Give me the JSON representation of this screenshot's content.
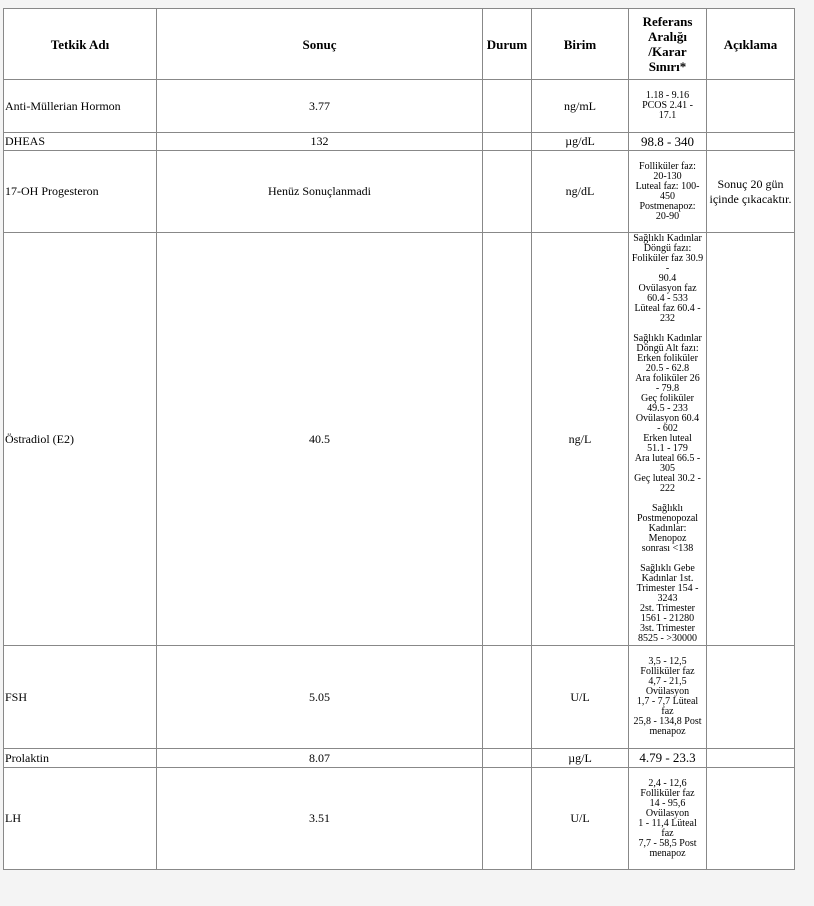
{
  "headers": {
    "test": "Tetkik Adı",
    "result": "Sonuç",
    "status": "Durum",
    "unit": "Birim",
    "reference": "Referans Aralığı /Karar Sınırı*",
    "note": "Açıklama"
  },
  "rows": [
    {
      "test": "Anti-Müllerian Hormon",
      "result": "3.77",
      "status": "",
      "unit": "ng/mL",
      "reference": "1.18 - 9.16\nPCOS 2.41 -\n17.1",
      "note": ""
    },
    {
      "test": "DHEAS",
      "result": "132",
      "status": "",
      "unit": "µg/dL",
      "reference": "98.8 - 340",
      "note": ""
    },
    {
      "test": "17-OH Progesteron",
      "result": "Henüz Sonuçlanmadi",
      "status": "",
      "unit": "ng/dL",
      "reference": "Folliküler faz:\n20-130\nLuteal faz: 100-\n450\nPostmenapoz:\n20-90",
      "note": "Sonuç 20 gün içinde çıkacaktır."
    },
    {
      "test": "Östradiol (E2)",
      "result": "40.5",
      "status": "",
      "unit": "ng/L",
      "reference": "Sağlıklı Kadınlar\nDöngü fazı:\nFoliküler faz 30.9 -\n90.4\nOvülasyon faz\n60.4 - 533\nLüteal faz 60.4 -\n232\n\nSağlıklı Kadınlar\nDöngü Alt fazı:\nErken foliküler\n20.5 - 62.8\nAra foliküler 26\n- 79.8\nGeç foliküler\n49.5 - 233\nOvülasyon 60.4\n- 602\nErken luteal\n51.1 - 179\nAra luteal 66.5 -\n305\nGeç luteal 30.2 -\n222\n\nSağlıklı\nPostmenopozal\nKadınlar: Menopoz\nsonrası <138\n\nSağlıklı Gebe\nKadınlar 1st.\nTrimester 154 -\n3243\n2st. Trimester\n1561 - 21280\n3st. Trimester\n8525 - >30000",
      "note": ""
    },
    {
      "test": "FSH",
      "result": "5.05",
      "status": "",
      "unit": "U/L",
      "reference": "3,5 - 12,5\nFolliküler faz\n4,7 - 21,5\nOvülasyon\n1,7 - 7,7 Lüteal\nfaz\n25,8 - 134,8 Post\nmenapoz",
      "note": ""
    },
    {
      "test": "Prolaktin",
      "result": "8.07",
      "status": "",
      "unit": "µg/L",
      "reference": "4.79 - 23.3",
      "note": ""
    },
    {
      "test": "LH",
      "result": "3.51",
      "status": "",
      "unit": "U/L",
      "reference": "2,4 - 12,6\nFolliküler faz\n14 - 95,6\nOvülasyon\n1 - 11,4 Lüteal\nfaz\n7,7 - 58,5 Post\nmenapoz",
      "note": ""
    }
  ]
}
